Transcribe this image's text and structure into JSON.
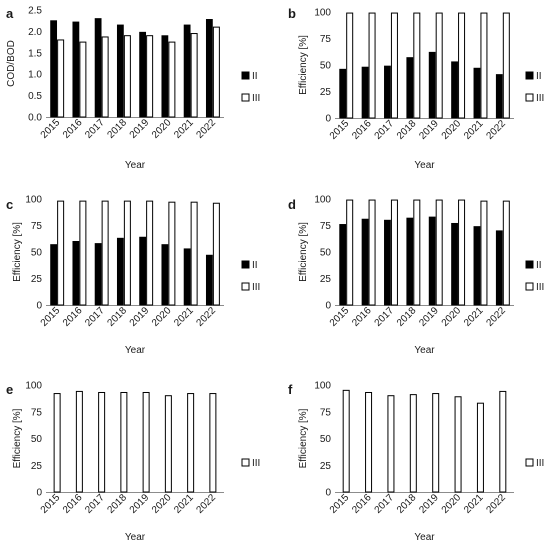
{
  "chart_data": [
    {
      "panel": "a",
      "type": "bar",
      "categories": [
        "2015",
        "2016",
        "2017",
        "2018",
        "2019",
        "2020",
        "2021",
        "2022"
      ],
      "series": [
        {
          "name": "II",
          "values": [
            2.25,
            2.22,
            2.3,
            2.15,
            1.98,
            1.9,
            2.15,
            2.28
          ]
        },
        {
          "name": "III",
          "values": [
            1.8,
            1.75,
            1.87,
            1.9,
            1.9,
            1.75,
            1.95,
            2.1
          ]
        }
      ],
      "xlabel": "Year",
      "ylabel": "COD/BOD",
      "ylim": [
        0,
        2.5
      ],
      "yticks": [
        "0.0",
        "0.5",
        "1.0",
        "1.5",
        "2.0",
        "2.5"
      ],
      "legend_position": "right",
      "grid": false
    },
    {
      "panel": "b",
      "type": "bar",
      "categories": [
        "2015",
        "2016",
        "2017",
        "2018",
        "2019",
        "2020",
        "2021",
        "2022"
      ],
      "series": [
        {
          "name": "II",
          "values": [
            46,
            48,
            49,
            57,
            62,
            53,
            47,
            41
          ]
        },
        {
          "name": "III",
          "values": [
            99,
            99,
            99,
            99,
            99,
            99,
            99,
            99
          ]
        }
      ],
      "xlabel": "Year",
      "ylabel": "Efficiency [%]",
      "ylim": [
        0,
        100
      ],
      "yticks": [
        "0",
        "25",
        "50",
        "75",
        "100"
      ],
      "legend_position": "right",
      "grid": false
    },
    {
      "panel": "c",
      "type": "bar",
      "categories": [
        "2015",
        "2016",
        "2017",
        "2018",
        "2019",
        "2020",
        "2021",
        "2022"
      ],
      "series": [
        {
          "name": "II",
          "values": [
            57,
            60,
            58,
            63,
            64,
            57,
            53,
            47
          ]
        },
        {
          "name": "III",
          "values": [
            98,
            98,
            98,
            98,
            98,
            97,
            97,
            96
          ]
        }
      ],
      "xlabel": "Year",
      "ylabel": "Efficiency [%]",
      "ylim": [
        0,
        100
      ],
      "yticks": [
        "0",
        "25",
        "50",
        "75",
        "100"
      ],
      "legend_position": "right",
      "grid": false
    },
    {
      "panel": "d",
      "type": "bar",
      "categories": [
        "2015",
        "2016",
        "2017",
        "2018",
        "2019",
        "2020",
        "2021",
        "2022"
      ],
      "series": [
        {
          "name": "II",
          "values": [
            76,
            81,
            80,
            82,
            83,
            77,
            74,
            70
          ]
        },
        {
          "name": "III",
          "values": [
            99,
            99,
            99,
            99,
            99,
            99,
            98,
            98
          ]
        }
      ],
      "xlabel": "Year",
      "ylabel": "Efficiency [%]",
      "ylim": [
        0,
        100
      ],
      "yticks": [
        "0",
        "25",
        "50",
        "75",
        "100"
      ],
      "legend_position": "right",
      "grid": false
    },
    {
      "panel": "e",
      "type": "bar",
      "categories": [
        "2015",
        "2016",
        "2017",
        "2018",
        "2019",
        "2020",
        "2021",
        "2022"
      ],
      "series": [
        {
          "name": "III",
          "values": [
            92,
            94,
            93,
            93,
            93,
            90,
            92,
            92
          ]
        }
      ],
      "xlabel": "Year",
      "ylabel": "Efficiency [%]",
      "ylim": [
        0,
        100
      ],
      "yticks": [
        "0",
        "25",
        "50",
        "75",
        "100"
      ],
      "legend_position": "right",
      "grid": false
    },
    {
      "panel": "f",
      "type": "bar",
      "categories": [
        "2015",
        "2016",
        "2017",
        "2018",
        "2019",
        "2020",
        "2021",
        "2022"
      ],
      "series": [
        {
          "name": "III",
          "values": [
            95,
            93,
            90,
            91,
            92,
            89,
            83,
            94
          ]
        }
      ],
      "xlabel": "Year",
      "ylabel": "Efficiency [%]",
      "ylim": [
        0,
        100
      ],
      "yticks": [
        "0",
        "25",
        "50",
        "75",
        "100"
      ],
      "legend_position": "right",
      "grid": false
    }
  ]
}
